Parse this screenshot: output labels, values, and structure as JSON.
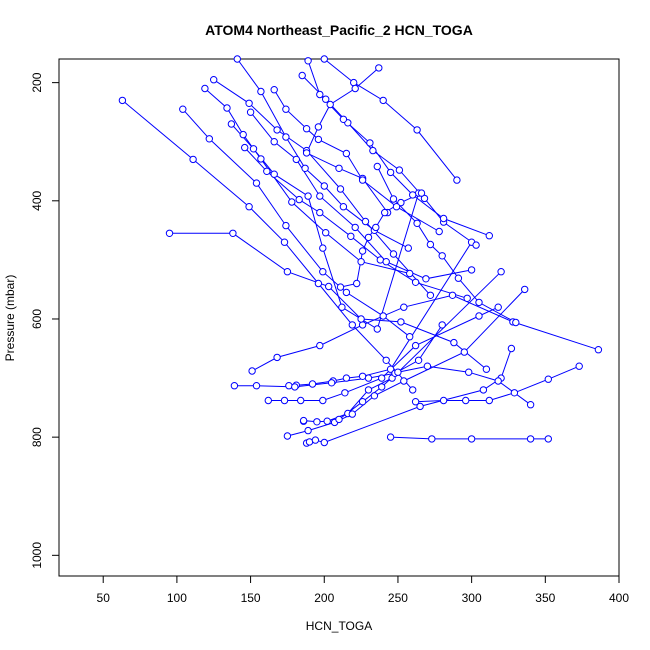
{
  "chart_data": {
    "type": "scatter",
    "title": "ATOM4 Northeast_Pacific_2 HCN_TOGA",
    "xlabel": "HCN_TOGA",
    "ylabel": "Pressure (mbar)",
    "xlim": [
      20,
      400
    ],
    "ylim": [
      1035,
      160
    ],
    "y_reversed": true,
    "xticks": [
      50,
      100,
      150,
      200,
      250,
      300,
      350,
      400
    ],
    "yticks": [
      200,
      400,
      600,
      800,
      1000
    ],
    "grid": false,
    "legend": "none",
    "series_color": "#0000ff",
    "marker": "open-circle",
    "connect_points": true,
    "series": [
      {
        "x": [
          188,
          190,
          194,
          200,
          265,
          308,
          320,
          327
        ],
        "y": [
          810,
          808,
          805,
          809,
          748,
          720,
          700,
          650
        ]
      },
      {
        "x": [
          186,
          186,
          195,
          202,
          216,
          230,
          246,
          320
        ],
        "y": [
          773,
          772,
          774,
          773,
          760,
          720,
          700,
          520
        ]
      },
      {
        "x": [
          176,
          181,
          192,
          206,
          215,
          226,
          245,
          300
        ],
        "y": [
          713,
          712,
          710,
          705,
          700,
          697,
          685,
          470
        ]
      },
      {
        "x": [
          162,
          173,
          184,
          199,
          214,
          239,
          262,
          305,
          318
        ],
        "y": [
          738,
          738,
          738,
          738,
          725,
          700,
          645,
          595,
          580
        ]
      },
      {
        "x": [
          175,
          189,
          207,
          219,
          234,
          254,
          295,
          336
        ],
        "y": [
          798,
          789,
          775,
          761,
          730,
          705,
          656,
          550
        ]
      },
      {
        "x": [
          245,
          273,
          300,
          340,
          352
        ],
        "y": [
          800,
          803,
          803,
          803,
          803
        ]
      },
      {
        "x": [
          139,
          154,
          180,
          205,
          230,
          248,
          264,
          280
        ],
        "y": [
          713,
          713,
          715,
          708,
          700,
          692,
          670,
          610
        ]
      },
      {
        "x": [
          151,
          168,
          197,
          226,
          254,
          287,
          328,
          386
        ],
        "y": [
          688,
          665,
          645,
          610,
          580,
          560,
          605,
          652
        ]
      },
      {
        "x": [
          210,
          226,
          239,
          250,
          270,
          298,
          318,
          340
        ],
        "y": [
          770,
          740,
          715,
          690,
          680,
          690,
          705,
          745
        ]
      },
      {
        "x": [
          262,
          281,
          296,
          312,
          329,
          352,
          373
        ],
        "y": [
          740,
          738,
          738,
          738,
          725,
          702,
          680
        ]
      },
      {
        "x": [
          63,
          111,
          149,
          173,
          196,
          219,
          242,
          260
        ],
        "y": [
          230,
          330,
          410,
          470,
          540,
          610,
          670,
          720
        ]
      },
      {
        "x": [
          95,
          138,
          175,
          203,
          225,
          252,
          288,
          310
        ],
        "y": [
          455,
          455,
          520,
          545,
          600,
          605,
          640,
          685
        ]
      },
      {
        "x": [
          104,
          122,
          154,
          174,
          199,
          215,
          240,
          258
        ],
        "y": [
          245,
          295,
          370,
          442,
          520,
          555,
          595,
          630
        ]
      },
      {
        "x": [
          125,
          149,
          168,
          188,
          211,
          228,
          247,
          272
        ],
        "y": [
          195,
          235,
          280,
          315,
          380,
          435,
          490,
          560
        ]
      },
      {
        "x": [
          137,
          152,
          166,
          189,
          199,
          212,
          236,
          264
        ],
        "y": [
          270,
          312,
          355,
          392,
          480,
          580,
          617,
          387
        ]
      },
      {
        "x": [
          146,
          161,
          183,
          197,
          218,
          238,
          262,
          297
        ],
        "y": [
          310,
          350,
          398,
          420,
          460,
          500,
          538,
          565
        ]
      },
      {
        "x": [
          141,
          157,
          174,
          187,
          200,
          213,
          234,
          257
        ],
        "y": [
          160,
          215,
          292,
          345,
          375,
          410,
          450,
          480
        ]
      },
      {
        "x": [
          150,
          166,
          181,
          197,
          221,
          242,
          269,
          300
        ],
        "y": [
          250,
          300,
          330,
          392,
          445,
          503,
          532,
          517
        ]
      },
      {
        "x": [
          200,
          220,
          240,
          263,
          290
        ],
        "y": [
          160,
          200,
          230,
          280,
          365
        ]
      },
      {
        "x": [
          185,
          201,
          216,
          233,
          251,
          268,
          281,
          303
        ],
        "y": [
          188,
          228,
          268,
          315,
          348,
          396,
          436,
          475
        ]
      },
      {
        "x": [
          237,
          221,
          204,
          196,
          188,
          210,
          226,
          243
        ],
        "y": [
          175,
          210,
          237,
          275,
          319,
          345,
          362,
          420
        ]
      },
      {
        "x": [
          266,
          252,
          241,
          235,
          230,
          226,
          222,
          211
        ],
        "y": [
          387,
          403,
          420,
          445,
          462,
          485,
          540,
          546
        ]
      },
      {
        "x": [
          236,
          247,
          263,
          272,
          280,
          291,
          305,
          330
        ],
        "y": [
          342,
          397,
          438,
          474,
          493,
          531,
          572,
          606
        ]
      },
      {
        "x": [
          166,
          174,
          188,
          196,
          215,
          226,
          249,
          278
        ],
        "y": [
          212,
          245,
          278,
          296,
          320,
          365,
          410,
          452
        ]
      },
      {
        "x": [
          119,
          134,
          145,
          157,
          178,
          201,
          225,
          258
        ],
        "y": [
          210,
          243,
          288,
          329,
          402,
          454,
          503,
          523
        ]
      },
      {
        "x": [
          189,
          197,
          213,
          231,
          245,
          260,
          281,
          312
        ],
        "y": [
          163,
          220,
          262,
          302,
          352,
          390,
          430,
          459
        ]
      }
    ]
  }
}
